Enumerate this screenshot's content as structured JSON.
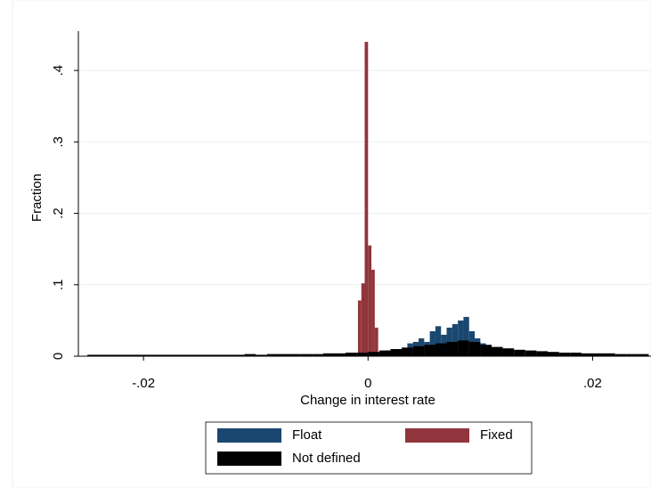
{
  "chart_data": {
    "type": "histogram",
    "x_label": "Change in interest rate",
    "y_label": "Fraction",
    "xlim": [
      -0.0258,
      0.0252
    ],
    "ylim": [
      0,
      0.455
    ],
    "xticks": [
      {
        "value": -0.02,
        "label": "-.02"
      },
      0,
      {
        "value": 0.02,
        "label": ".02"
      }
    ],
    "yticks": [
      0,
      {
        "value": 0.1,
        "label": ".1"
      },
      {
        "value": 0.2,
        "label": ".2"
      },
      {
        "value": 0.3,
        "label": ".3"
      },
      {
        "value": 0.4,
        "label": ".4"
      }
    ],
    "grid": true,
    "legend_position": "bottom",
    "series": [
      {
        "name": "Fixed",
        "color": "#90353b",
        "bins": [
          -0.0009,
          -0.0006,
          -0.0003,
          0,
          0.0003,
          0.0006,
          0.0009
        ],
        "values": [
          0.078,
          0.102,
          0.44,
          0.155,
          0.121,
          0.04
        ]
      },
      {
        "name": "Float",
        "color": "#1a476f",
        "bins": [
          0.001,
          0.0015,
          0.002,
          0.0025,
          0.003,
          0.0035,
          0.004,
          0.0045,
          0.005,
          0.0055,
          0.006,
          0.0065,
          0.007,
          0.0075,
          0.008,
          0.0085,
          0.009,
          0.0095,
          0.01,
          0.0105,
          0.011,
          0.0115,
          0.012,
          0.0125,
          0.013
        ],
        "values": [
          0.005,
          0.008,
          0.006,
          0.01,
          0.012,
          0.018,
          0.02,
          0.025,
          0.02,
          0.035,
          0.042,
          0.03,
          0.04,
          0.045,
          0.05,
          0.055,
          0.035,
          0.025,
          0.018,
          0.015,
          0.01,
          0.008,
          0.006,
          0.004
        ]
      },
      {
        "name": "Not defined",
        "color": "#000000",
        "bins": [
          -0.025,
          -0.024,
          -0.023,
          -0.022,
          -0.021,
          -0.02,
          -0.019,
          -0.018,
          -0.017,
          -0.016,
          -0.015,
          -0.014,
          -0.013,
          -0.012,
          -0.011,
          -0.01,
          -0.009,
          -0.008,
          -0.007,
          -0.006,
          -0.005,
          -0.004,
          -0.003,
          -0.002,
          -0.001,
          0,
          0.001,
          0.002,
          0.003,
          0.004,
          0.005,
          0.006,
          0.007,
          0.008,
          0.009,
          0.01,
          0.011,
          0.012,
          0.013,
          0.014,
          0.015,
          0.016,
          0.017,
          0.018,
          0.019,
          0.02,
          0.021,
          0.022,
          0.023,
          0.024,
          0.025
        ],
        "values": [
          0.002,
          0.002,
          0.002,
          0.002,
          0.002,
          0.002,
          0.002,
          0.002,
          0.002,
          0.002,
          0.002,
          0.002,
          0.002,
          0.002,
          0.003,
          0.002,
          0.003,
          0.003,
          0.003,
          0.003,
          0.003,
          0.004,
          0.004,
          0.005,
          0.005,
          0.006,
          0.008,
          0.01,
          0.012,
          0.014,
          0.016,
          0.018,
          0.02,
          0.022,
          0.02,
          0.016,
          0.013,
          0.011,
          0.009,
          0.008,
          0.007,
          0.006,
          0.005,
          0.005,
          0.004,
          0.004,
          0.004,
          0.003,
          0.003,
          0.003
        ]
      }
    ]
  }
}
